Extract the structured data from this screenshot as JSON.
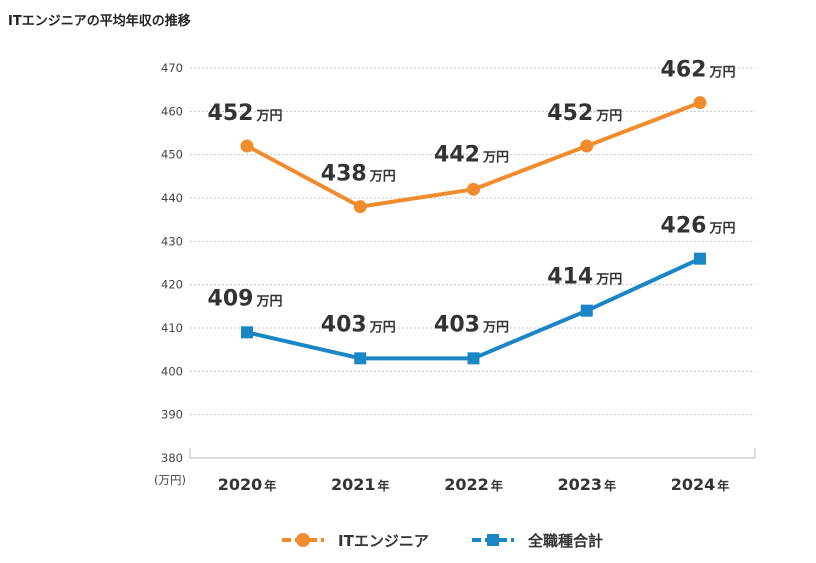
{
  "chart_data": {
    "type": "line",
    "title": "ITエンジニアの平均年収の推移",
    "categories": [
      "2020",
      "2021",
      "2022",
      "2023",
      "2024"
    ],
    "category_suffix": "年",
    "y_unit_label": "(万円)",
    "value_suffix": "万円",
    "ylim": [
      380,
      470
    ],
    "yticks": [
      380,
      390,
      400,
      410,
      420,
      430,
      440,
      450,
      460,
      470
    ],
    "grid": true,
    "legend_position": "bottom-center",
    "series": [
      {
        "name": "ITエンジニア",
        "values": [
          452,
          438,
          442,
          452,
          462
        ],
        "color": "#f08c2e",
        "marker": "circle"
      },
      {
        "name": "全職種合計",
        "values": [
          409,
          403,
          403,
          414,
          426
        ],
        "color": "#1a86c6",
        "marker": "square"
      }
    ]
  }
}
